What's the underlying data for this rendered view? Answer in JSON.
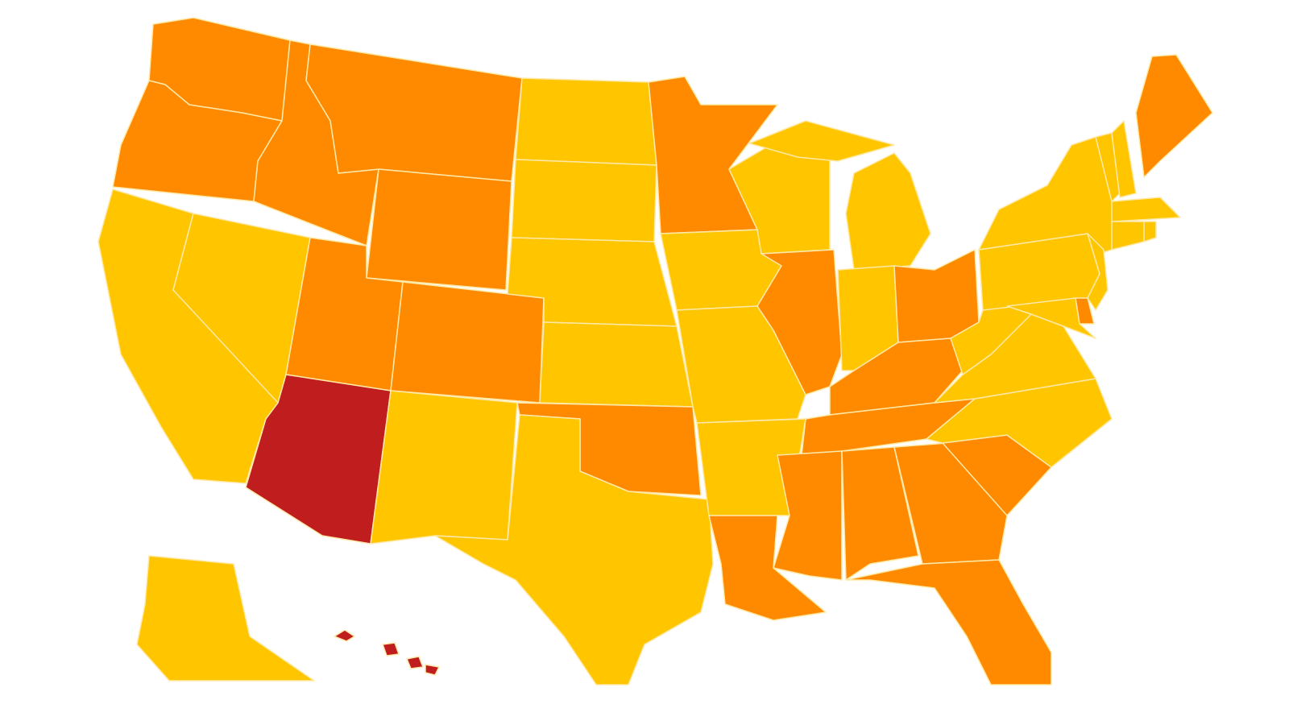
{
  "map": {
    "type": "choropleth",
    "region": "United States",
    "colors": {
      "1": "#FFC600",
      "2": "#FF8A00",
      "3": "#C01E1E"
    },
    "levels": {
      "WA": 2,
      "OR": 2,
      "CA": 1,
      "NV": 1,
      "ID": 2,
      "MT": 2,
      "WY": 2,
      "UT": 2,
      "CO": 2,
      "AZ": 3,
      "NM": 1,
      "ND": 1,
      "SD": 1,
      "NE": 1,
      "KS": 1,
      "OK": 2,
      "TX": 1,
      "MN": 2,
      "IA": 1,
      "MO": 1,
      "AR": 1,
      "LA": 2,
      "WI": 1,
      "IL": 2,
      "MI": 1,
      "IN": 1,
      "OH": 2,
      "KY": 2,
      "TN": 2,
      "MS": 2,
      "AL": 2,
      "GA": 2,
      "SC": 2,
      "FL": 2,
      "NC": 1,
      "VA": 1,
      "WV": 1,
      "PA": 1,
      "NY": 1,
      "NJ": 1,
      "DE": 2,
      "MD": 1,
      "VT": 1,
      "NH": 1,
      "ME": 2,
      "MA": 1,
      "CT": 1,
      "RI": 1,
      "AK": 1,
      "HI": 3
    }
  }
}
